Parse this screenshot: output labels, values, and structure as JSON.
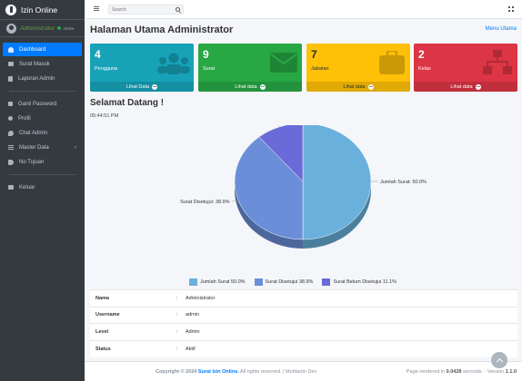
{
  "brand": {
    "name": "Izin Online",
    "logo_icon": "info-circle-icon"
  },
  "user": {
    "name": "Administrator",
    "status": "Aktive",
    "status_color": "#28a745"
  },
  "sidebar": {
    "items": [
      {
        "label": "Dashboard",
        "icon": "gauge-icon",
        "active": true
      },
      {
        "label": "Surat Masuk",
        "icon": "mail-icon"
      },
      {
        "label": "Laporan Admin",
        "icon": "document-icon"
      },
      {
        "label": "Ganti Password",
        "icon": "lock-icon"
      },
      {
        "label": "Profil",
        "icon": "user-icon"
      },
      {
        "label": "Chat Admin",
        "icon": "chat-icon"
      },
      {
        "label": "Master Data",
        "icon": "list-icon",
        "caret": "‹"
      },
      {
        "label": "No Tujuan",
        "icon": "tag-icon"
      },
      {
        "label": "Keluar",
        "icon": "logout-icon"
      }
    ]
  },
  "topbar": {
    "search_placeholder": "Search"
  },
  "page": {
    "title": "Halaman Utama Administrator",
    "menu_link": "Menu Utama"
  },
  "boxes": [
    {
      "number": "4",
      "label": "Pengguna",
      "footer": "Lihat Data",
      "color": "#17a2b8",
      "icon": "users-icon"
    },
    {
      "number": "9",
      "label": "Surat",
      "footer": "Lihat data",
      "color": "#28a745",
      "icon": "envelope-icon"
    },
    {
      "number": "7",
      "label": "Jabatan",
      "footer": "Lihat data",
      "color": "#ffc107",
      "icon": "briefcase-icon"
    },
    {
      "number": "2",
      "label": "Kelas",
      "footer": "Lihat data",
      "color": "#dc3545",
      "icon": "sitemap-icon"
    }
  ],
  "welcome": {
    "title": "Selamat Datang !",
    "time": "05:44:51 PM"
  },
  "chart_data": {
    "type": "pie",
    "slices": [
      {
        "label": "Jumlah Surat",
        "percent": 50.0,
        "color": "#6ab0dc",
        "callout": "Jumlah Surat: 50.0%"
      },
      {
        "label": "Surat Disetujui",
        "percent": 38.9,
        "color": "#6a8fd8",
        "callout": "Surat Disetujui: 38.9%"
      },
      {
        "label": "Surat Belum Disetujui",
        "percent": 11.1,
        "color": "#6a6ad8",
        "callout": "Surat Belum Disetujui: 11.1%"
      }
    ],
    "legend_placement": "bottom",
    "legend": [
      "Jumlah Surat  50.0%",
      "Surat Disetujui  38.9%",
      "Surat Belum Disetujui  11.1%"
    ]
  },
  "info": [
    {
      "key": "Nama",
      "sep": ":",
      "value": "Administrator"
    },
    {
      "key": "Username",
      "sep": ":",
      "value": "admin"
    },
    {
      "key": "Level",
      "sep": ":",
      "value": "Admin"
    },
    {
      "key": "Status",
      "sep": ":",
      "value": "Aktif"
    }
  ],
  "footer": {
    "copyright": "Copyright © 2024",
    "brand": "Surat Izin Online.",
    "rights": "All rights reserved. | Muhtanto Dev",
    "rendered_prefix": "Page rendered in",
    "rendered_time": "0.0428",
    "rendered_suffix": "seconds. - Version",
    "version": "1.1.0"
  }
}
